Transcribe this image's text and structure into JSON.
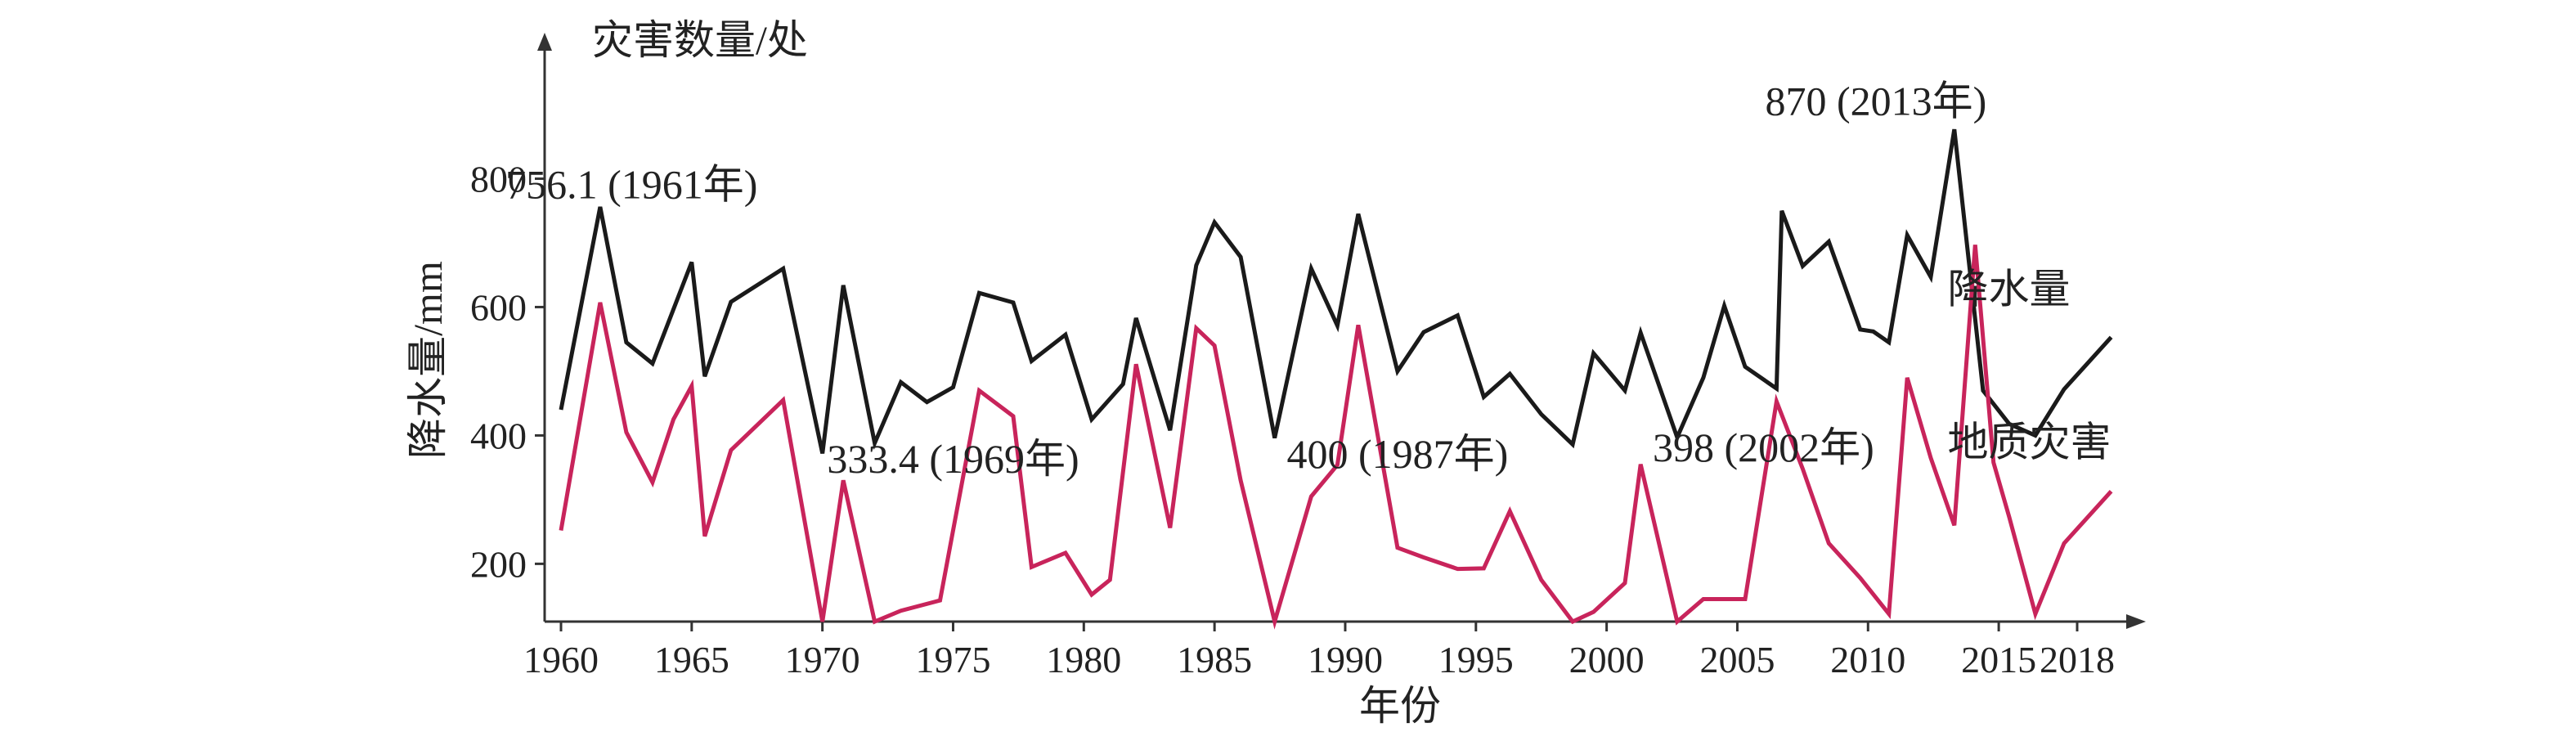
{
  "chart_data": {
    "type": "line",
    "title": "",
    "xlabel": "年份",
    "ylabel": "降水量/mm",
    "y_secondary_label": "灾害数量/处",
    "xlim": [
      1960,
      2018
    ],
    "ylim": [
      110,
      900
    ],
    "xticks": [
      1960,
      1965,
      1970,
      1975,
      1980,
      1985,
      1990,
      1995,
      2000,
      2005,
      2010,
      2015,
      2018
    ],
    "yticks": [
      200,
      400,
      600,
      800
    ],
    "grid": false,
    "colors": {
      "precipitation": "#1a1a1a",
      "disasters": "#c8245b"
    },
    "series": [
      {
        "name": "降水量",
        "points": [
          [
            1960,
            440
          ],
          [
            1961.5,
            756
          ],
          [
            1962.5,
            545
          ],
          [
            1963.5,
            512
          ],
          [
            1965,
            670
          ],
          [
            1965.5,
            492
          ],
          [
            1966.5,
            608
          ],
          [
            1968.5,
            660
          ],
          [
            1970,
            372
          ],
          [
            1970.8,
            634
          ],
          [
            1972,
            388
          ],
          [
            1973,
            483
          ],
          [
            1974,
            452
          ],
          [
            1975,
            475
          ],
          [
            1976,
            622
          ],
          [
            1977.3,
            607
          ],
          [
            1978,
            516
          ],
          [
            1979.3,
            557
          ],
          [
            1980.3,
            425
          ],
          [
            1981.5,
            480
          ],
          [
            1982,
            583
          ],
          [
            1983.3,
            408
          ],
          [
            1984.3,
            665
          ],
          [
            1985,
            732
          ],
          [
            1986,
            678
          ],
          [
            1987.3,
            396
          ],
          [
            1988.7,
            660
          ],
          [
            1989.7,
            571
          ],
          [
            1990.5,
            745
          ],
          [
            1992,
            500
          ],
          [
            1993,
            561
          ],
          [
            1994.3,
            587
          ],
          [
            1995.3,
            460
          ],
          [
            1996.3,
            496
          ],
          [
            1997.5,
            433
          ],
          [
            1998.7,
            386
          ],
          [
            1999.5,
            528
          ],
          [
            2000.7,
            470
          ],
          [
            2001.3,
            560
          ],
          [
            2002.7,
            397
          ],
          [
            2003.7,
            490
          ],
          [
            2004.5,
            602
          ],
          [
            2005.3,
            507
          ],
          [
            2006.5,
            473
          ],
          [
            2006.7,
            750
          ],
          [
            2007.5,
            664
          ],
          [
            2008.5,
            702
          ],
          [
            2009.7,
            565
          ],
          [
            2010.2,
            562
          ],
          [
            2010.8,
            545
          ],
          [
            2011.5,
            712
          ],
          [
            2012.4,
            647
          ],
          [
            2013.3,
            877
          ],
          [
            2014.4,
            470
          ],
          [
            2015.4,
            418
          ],
          [
            2016.4,
            400
          ],
          [
            2017.5,
            472
          ],
          [
            2019.3,
            553
          ]
        ]
      },
      {
        "name": "地质灾害",
        "points": [
          [
            1960,
            252
          ],
          [
            1961.5,
            607
          ],
          [
            1962.5,
            405
          ],
          [
            1963.5,
            327
          ],
          [
            1964.3,
            425
          ],
          [
            1965,
            477
          ],
          [
            1965.5,
            243
          ],
          [
            1966.5,
            377
          ],
          [
            1968.5,
            455
          ],
          [
            1970,
            110
          ],
          [
            1970.8,
            330
          ],
          [
            1972,
            110
          ],
          [
            1973,
            127
          ],
          [
            1974.5,
            143
          ],
          [
            1976,
            470
          ],
          [
            1977.3,
            430
          ],
          [
            1978,
            195
          ],
          [
            1979.3,
            217
          ],
          [
            1980.3,
            152
          ],
          [
            1981,
            175
          ],
          [
            1982,
            511
          ],
          [
            1983.3,
            256
          ],
          [
            1984.3,
            567
          ],
          [
            1985,
            540
          ],
          [
            1986,
            330
          ],
          [
            1987.3,
            110
          ],
          [
            1988.7,
            305
          ],
          [
            1989.7,
            354
          ],
          [
            1990.5,
            572
          ],
          [
            1992,
            225
          ],
          [
            1993,
            210
          ],
          [
            1994.3,
            192
          ],
          [
            1995.3,
            193
          ],
          [
            1996.3,
            282
          ],
          [
            1997.5,
            175
          ],
          [
            1998.7,
            110
          ],
          [
            1999.5,
            125
          ],
          [
            2000.7,
            170
          ],
          [
            2001.3,
            355
          ],
          [
            2002.7,
            110
          ],
          [
            2003.7,
            145
          ],
          [
            2004.5,
            145
          ],
          [
            2005.3,
            145
          ],
          [
            2006.5,
            453
          ],
          [
            2007.5,
            348
          ],
          [
            2008.5,
            232
          ],
          [
            2009.7,
            178
          ],
          [
            2010.8,
            122
          ],
          [
            2011.5,
            490
          ],
          [
            2012.4,
            365
          ],
          [
            2013.3,
            260
          ],
          [
            2014.1,
            697
          ],
          [
            2014.8,
            358
          ],
          [
            2015.4,
            273
          ],
          [
            2016.4,
            122
          ],
          [
            2017.5,
            232
          ],
          [
            2019.3,
            313
          ]
        ]
      }
    ],
    "annotations": [
      {
        "text": "756.1 (1961年)",
        "x": 1962.7,
        "y": 790
      },
      {
        "text": "333.4 (1969年)",
        "x": 1975,
        "y": 362
      },
      {
        "text": "400 (1987年)",
        "x": 1992,
        "y": 370
      },
      {
        "text": "398 (2002年)",
        "x": 2006,
        "y": 380
      },
      {
        "text": "870 (2013年)",
        "x": 2010.3,
        "y": 920
      }
    ]
  }
}
